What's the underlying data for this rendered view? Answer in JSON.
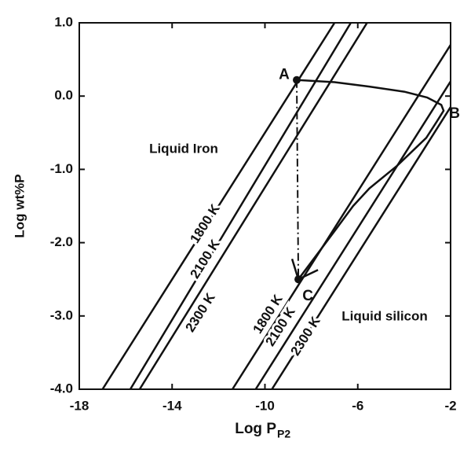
{
  "chart_data": {
    "type": "line",
    "y_label": "Log wt%P",
    "x_label": "Log P",
    "x_label_subscript": "P2",
    "xlim": [
      -18,
      -2
    ],
    "xticks": [
      -18,
      -14,
      -10,
      -6,
      -2
    ],
    "ylim": [
      -4,
      1
    ],
    "yticks": [
      {
        "value": -4,
        "label": "-4.0"
      },
      {
        "value": -3,
        "label": "-3.0"
      },
      {
        "value": -2,
        "label": "-2.0"
      },
      {
        "value": -1,
        "label": "-1.0"
      },
      {
        "value": 0,
        "label": "0.0"
      },
      {
        "value": 1,
        "label": "1.0"
      }
    ],
    "color": "#111111",
    "isotherms": [
      {
        "name": "1800 K",
        "x": [
          -17.0,
          -7.0
        ],
        "values": [
          -4,
          1
        ]
      },
      {
        "name": "2100 K",
        "x": [
          -15.8,
          -6.3
        ],
        "values": [
          -4,
          1
        ]
      },
      {
        "name": "2300 K",
        "x": [
          -15.4,
          -5.6
        ],
        "values": [
          -4,
          1
        ]
      },
      {
        "name": "1800 K",
        "x": [
          -11.4,
          -2
        ],
        "values": [
          -4,
          0.7
        ]
      },
      {
        "name": "2100 K",
        "x": [
          -10.4,
          -2
        ],
        "values": [
          -4,
          0.2
        ]
      },
      {
        "name": "2300 K",
        "x": [
          -9.7,
          -2
        ],
        "values": [
          -4,
          -0.15
        ]
      }
    ],
    "path": {
      "x": [
        -8.63,
        -7,
        -5.5,
        -4,
        -3,
        -2.4,
        -2.3,
        -2.6,
        -3.05,
        -4.3,
        -5.5,
        -6.2,
        -6.9,
        -8.56
      ],
      "values": [
        0.22,
        0.19,
        0.13,
        0.06,
        -0.02,
        -0.12,
        -0.2,
        -0.35,
        -0.57,
        -0.95,
        -1.26,
        -1.5,
        -1.8,
        -2.5
      ]
    },
    "dashdot": {
      "x": [
        -8.63,
        -8.56
      ],
      "values": [
        0.22,
        -2.5
      ]
    },
    "points": [
      {
        "label": "A",
        "x": -8.63,
        "y": 0.22
      },
      {
        "label": "B",
        "x": -2.3,
        "y": -0.2
      },
      {
        "label": "C",
        "x": -8.56,
        "y": -2.5
      }
    ],
    "annotations": [
      "Liquid Iron",
      "Liquid silicon"
    ]
  }
}
